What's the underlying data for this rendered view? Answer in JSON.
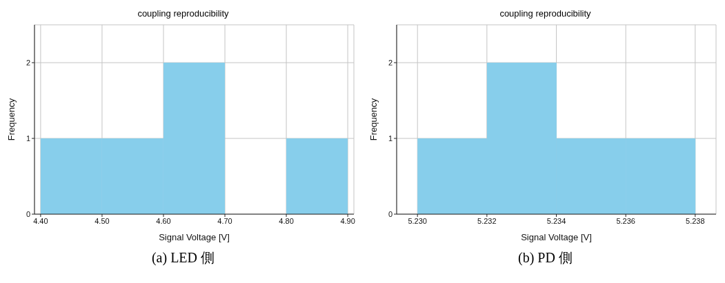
{
  "chart_data": [
    {
      "type": "histogram",
      "title": "coupling reproducibility",
      "xlabel": "Signal Voltage [V]",
      "ylabel": "Frequency",
      "bins": [
        4.4,
        4.5,
        4.6,
        4.7,
        4.8,
        4.9
      ],
      "values": [
        1,
        1,
        2,
        0,
        1
      ],
      "color": "#87ceeb",
      "xlim": [
        4.39,
        4.91
      ],
      "xticks": [
        {
          "value": 4.4,
          "label": "4.40"
        },
        {
          "value": 4.5,
          "label": "4.50"
        },
        {
          "value": 4.6,
          "label": "4.60"
        },
        {
          "value": 4.7,
          "label": "4.70"
        },
        {
          "value": 4.8,
          "label": "4.80"
        },
        {
          "value": 4.9,
          "label": "4.90"
        }
      ],
      "ylim": [
        0,
        2.5
      ],
      "yticks": [
        0,
        1,
        2
      ],
      "grid": true,
      "annotations": [
        "(a) LED 側"
      ]
    },
    {
      "type": "histogram",
      "title": "coupling reproducibility",
      "xlabel": "Signal Voltage [V]",
      "ylabel": "Frequency",
      "bins": [
        5.23,
        5.232,
        5.234,
        5.236,
        5.238
      ],
      "values": [
        1,
        2,
        1,
        1
      ],
      "color": "#87ceeb",
      "xlim": [
        5.2294,
        5.2386
      ],
      "xticks": [
        {
          "value": 5.23,
          "label": "5.230"
        },
        {
          "value": 5.232,
          "label": "5.232"
        },
        {
          "value": 5.234,
          "label": "5.234"
        },
        {
          "value": 5.236,
          "label": "5.236"
        },
        {
          "value": 5.238,
          "label": "5.238"
        }
      ],
      "ylim": [
        0,
        2.5
      ],
      "yticks": [
        0,
        1,
        2
      ],
      "grid": true,
      "annotations": [
        "(b) PD 側"
      ]
    }
  ]
}
